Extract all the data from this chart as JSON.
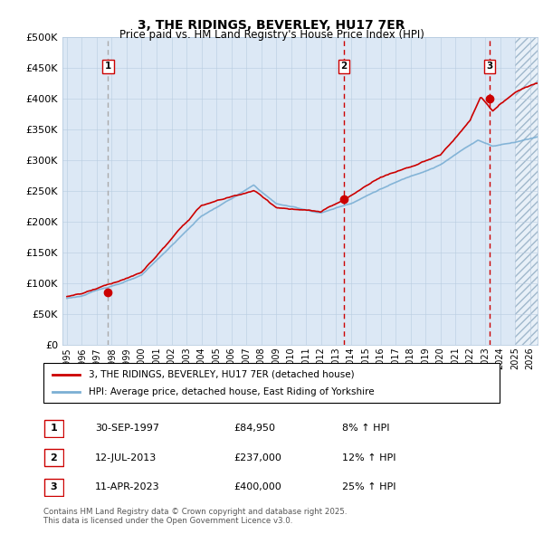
{
  "title": "3, THE RIDINGS, BEVERLEY, HU17 7ER",
  "subtitle": "Price paid vs. HM Land Registry's House Price Index (HPI)",
  "ylim": [
    0,
    500000
  ],
  "yticks": [
    0,
    50000,
    100000,
    150000,
    200000,
    250000,
    300000,
    350000,
    400000,
    450000,
    500000
  ],
  "ytick_labels": [
    "£0",
    "£50K",
    "£100K",
    "£150K",
    "£200K",
    "£250K",
    "£300K",
    "£350K",
    "£400K",
    "£450K",
    "£500K"
  ],
  "xlim_start": 1994.7,
  "xlim_end": 2026.5,
  "legend_line1": "3, THE RIDINGS, BEVERLEY, HU17 7ER (detached house)",
  "legend_line2": "HPI: Average price, detached house, East Riding of Yorkshire",
  "footer1": "Contains HM Land Registry data © Crown copyright and database right 2025.",
  "footer2": "This data is licensed under the Open Government Licence v3.0.",
  "sale_markers": [
    {
      "num": 1,
      "date_num": 1997.75,
      "price": 84950,
      "label": "1",
      "text": "30-SEP-1997",
      "price_str": "£84,950",
      "hpi_str": "8% ↑ HPI"
    },
    {
      "num": 2,
      "date_num": 2013.54,
      "price": 237000,
      "label": "2",
      "text": "12-JUL-2013",
      "price_str": "£237,000",
      "hpi_str": "12% ↑ HPI"
    },
    {
      "num": 3,
      "date_num": 2023.28,
      "price": 400000,
      "label": "3",
      "text": "11-APR-2023",
      "price_str": "£400,000",
      "hpi_str": "25% ↑ HPI"
    }
  ],
  "hpi_color": "#7bafd4",
  "price_color": "#cc0000",
  "vline_color_grey": "#aaaaaa",
  "vline_color_red": "#cc0000",
  "bg_color": "#dce8f5",
  "hatch_color": "#b8cfe0",
  "grid_color": "#b8cce0",
  "hatch_start": 2025.0
}
